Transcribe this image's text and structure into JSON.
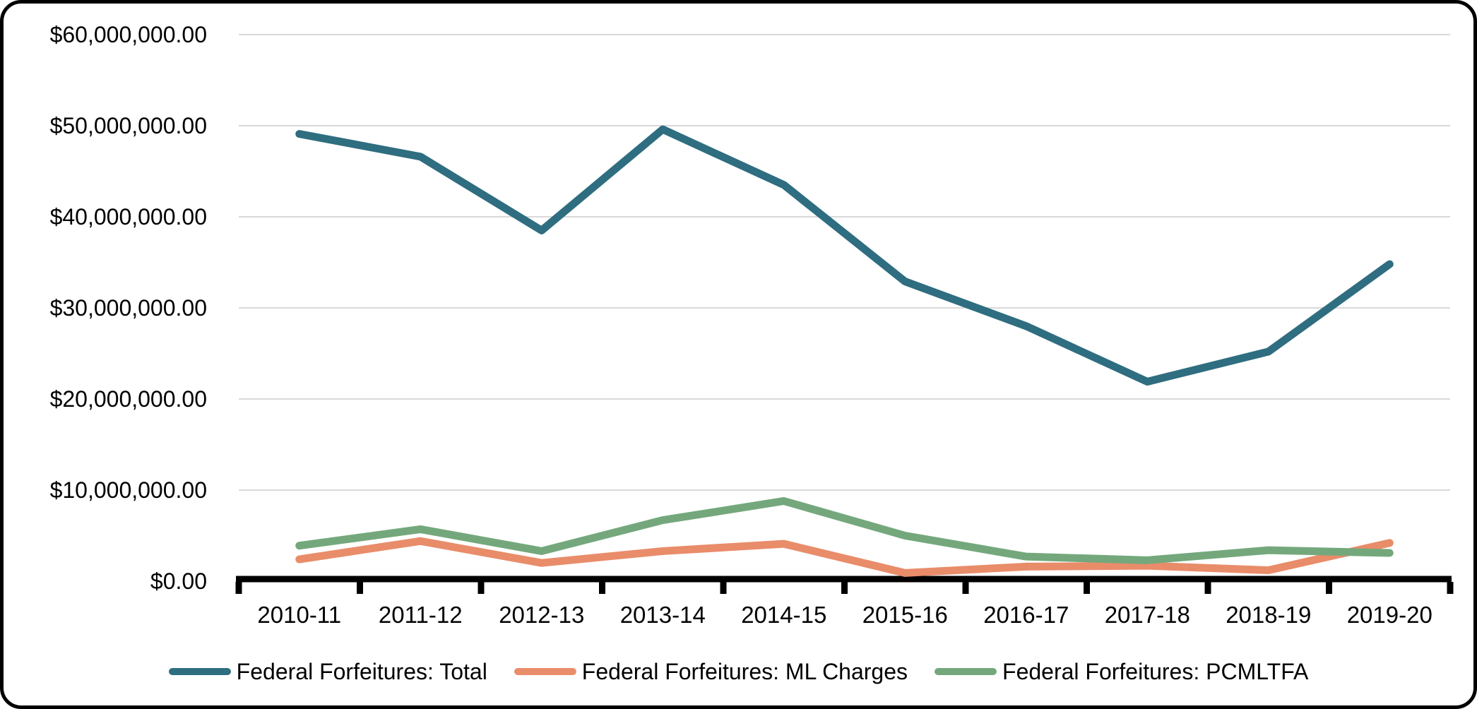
{
  "chart_data": {
    "type": "line",
    "title": "",
    "categories": [
      "2010-11",
      "2011-12",
      "2012-13",
      "2013-14",
      "2014-15",
      "2015-16",
      "2016-17",
      "2017-18",
      "2018-19",
      "2019-20"
    ],
    "series": [
      {
        "name": "Federal Forfeitures: Total",
        "color": "#2F6D80",
        "values": [
          49100000,
          46600000,
          38500000,
          49600000,
          43500000,
          32900000,
          28000000,
          21900000,
          25200000,
          34800000
        ]
      },
      {
        "name": "Federal Forfeitures: ML Charges",
        "color": "#E98C6A",
        "values": [
          2400000,
          4400000,
          2000000,
          3300000,
          4100000,
          900000,
          1600000,
          1700000,
          1200000,
          4200000
        ]
      },
      {
        "name": "Federal Forfeitures: PCMLTFA",
        "color": "#74A87C",
        "values": [
          3900000,
          5700000,
          3300000,
          6700000,
          8800000,
          5000000,
          2700000,
          2300000,
          3400000,
          3100000
        ]
      }
    ],
    "y_axis": {
      "min": 0,
      "max": 60000000,
      "step": 10000000,
      "tick_labels": [
        "$0.00",
        "$10,000,000.00",
        "$20,000,000.00",
        "$30,000,000.00",
        "$40,000,000.00",
        "$50,000,000.00",
        "$60,000,000.00"
      ]
    },
    "x_axis": {
      "label": ""
    },
    "grid": true,
    "legend_position": "bottom",
    "colors": {
      "gridline": "#D9D9D9",
      "axis": "#000000",
      "text": "#000000"
    }
  }
}
